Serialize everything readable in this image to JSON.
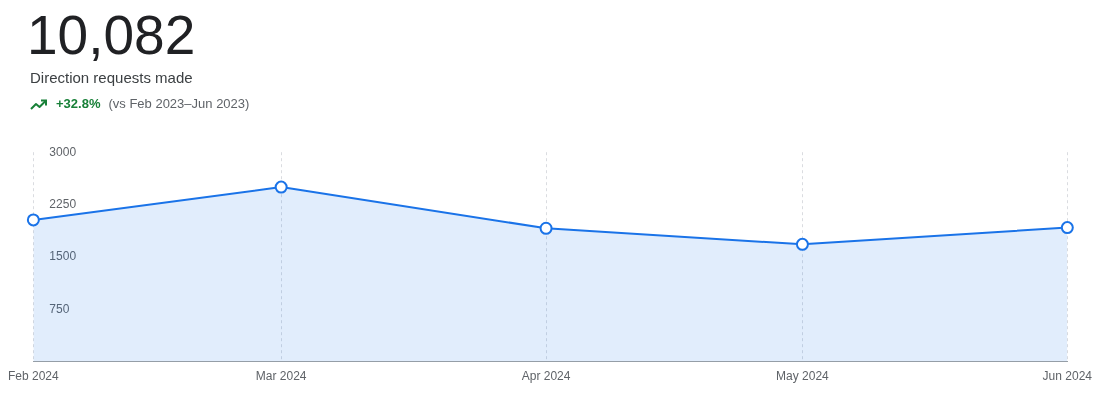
{
  "chart_data": {
    "type": "area",
    "title": "10,082",
    "subtitle": "Direction requests made",
    "annotations": [
      "+32.8%",
      "(vs Feb 2023–Jun 2023)"
    ],
    "x": [
      "2024-02",
      "2024-03",
      "2024-04",
      "2024-05",
      "2024-06"
    ],
    "series": [
      {
        "color": "#1a73e8",
        "values": [
          2030,
          2500,
          1910,
          1680,
          1920
        ]
      }
    ],
    "xlim": [
      "2024-02",
      "2024-06"
    ],
    "xticks": [
      {
        "value": "2024-02",
        "label": "Feb 2024"
      },
      {
        "value": "2024-03",
        "label": "Mar 2024"
      },
      {
        "value": "2024-04",
        "label": "Apr 2024"
      },
      {
        "value": "2024-05",
        "label": "May 2024"
      },
      {
        "value": "2024-06",
        "label": "Jun 2024"
      }
    ],
    "ylim": [
      0,
      3000
    ],
    "yticks": [
      750,
      1500,
      2250,
      3000
    ],
    "grid": "x",
    "marker": "circle",
    "line_style": "solid"
  }
}
